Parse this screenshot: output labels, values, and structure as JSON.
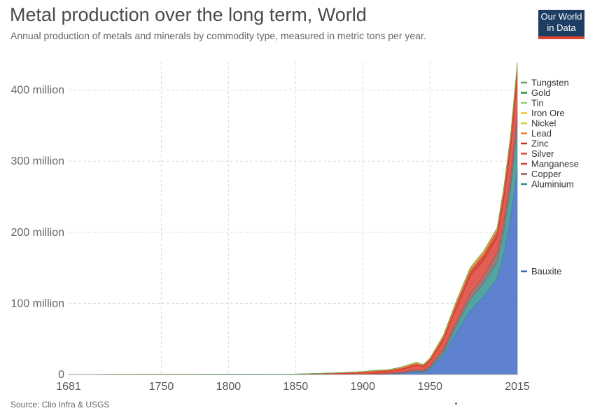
{
  "header": {
    "title": "Metal production over the long term, World",
    "subtitle": "Annual production of metals and minerals by commodity type, measured in metric tons per year.",
    "logo_line1": "Our World",
    "logo_line2": "in Data"
  },
  "footer": {
    "source": "Source: Clio Infra & USGS"
  },
  "colors": {
    "Bauxite": "#3a66c4",
    "Aluminium": "#2e8f8c",
    "Copper": "#8a5a5a",
    "Manganese": "#d93a2f",
    "Silver": "#e8453a",
    "Zinc": "#c8311f",
    "Lead": "#e8812a",
    "Nickel": "#d4c64a",
    "Iron Ore": "#f2c12e",
    "Tin": "#8fcf7a",
    "Gold": "#2f8f3a",
    "Tungsten": "#5aa55a"
  },
  "chart_data": {
    "type": "area",
    "title": "Metal production over the long term, World",
    "xlim": [
      1681,
      2015
    ],
    "ylim": [
      0,
      440000000
    ],
    "x_ticks": [
      "1681",
      "1750",
      "1800",
      "1850",
      "1900",
      "1950",
      "2015"
    ],
    "y_ticks": [
      "0",
      "100 million",
      "200 million",
      "300 million",
      "400 million"
    ],
    "x": [
      1681,
      1750,
      1800,
      1850,
      1880,
      1900,
      1910,
      1920,
      1930,
      1940,
      1945,
      1950,
      1960,
      1970,
      1980,
      1990,
      2000,
      2005,
      2010,
      2015
    ],
    "series": [
      {
        "name": "Bauxite",
        "values": [
          0,
          0,
          0,
          0,
          0,
          0.1,
          0.5,
          1,
          2,
          4,
          3,
          8,
          27,
          60,
          90,
          110,
          135,
          170,
          220,
          290
        ]
      },
      {
        "name": "Aluminium",
        "values": [
          0,
          0,
          0,
          0,
          0,
          0,
          0.01,
          0.1,
          0.3,
          1,
          1,
          1.5,
          4.5,
          10,
          16,
          19,
          24,
          32,
          41,
          58
        ]
      },
      {
        "name": "Copper",
        "values": [
          0,
          0,
          0,
          0,
          0.15,
          0.5,
          0.9,
          1,
          1.6,
          2.3,
          2,
          2.5,
          4.2,
          6.3,
          7.7,
          9,
          13,
          15,
          16,
          18.5
        ]
      },
      {
        "name": "Manganese",
        "values": [
          0,
          0,
          0,
          0,
          0.5,
          1,
          1.5,
          2,
          3,
          5,
          4,
          6,
          12,
          18,
          25,
          23,
          20,
          30,
          40,
          50
        ]
      },
      {
        "name": "Silver",
        "values": [
          0.1,
          0.3,
          0.4,
          0.5,
          0.8,
          1,
          1,
          1,
          1,
          1,
          1,
          1,
          1,
          1,
          1,
          1,
          1,
          1,
          1,
          1
        ]
      },
      {
        "name": "Zinc",
        "values": [
          0,
          0,
          0,
          0.1,
          0.4,
          0.5,
          0.8,
          0.7,
          1.5,
          1.8,
          1.5,
          2,
          3.5,
          5.5,
          6.2,
          7.2,
          8.7,
          10,
          12,
          13
        ]
      },
      {
        "name": "Lead",
        "values": [
          0.1,
          0.1,
          0.2,
          0.1,
          0.4,
          0.9,
          1.1,
          0.9,
          1.6,
          1.7,
          1.2,
          1.6,
          2.5,
          3.4,
          3.5,
          3.4,
          3.1,
          3.4,
          4.1,
          4.7
        ]
      },
      {
        "name": "Nickel",
        "values": [
          0,
          0,
          0,
          0,
          0,
          0.01,
          0.02,
          0.03,
          0.1,
          0.15,
          0.13,
          0.15,
          0.3,
          0.7,
          0.8,
          1,
          1.3,
          1.5,
          1.6,
          2.3
        ]
      },
      {
        "name": "Iron Ore",
        "values": [
          0,
          0,
          0,
          0,
          0,
          0,
          0,
          0,
          0,
          0,
          0,
          0,
          0,
          0,
          0,
          0,
          0,
          0,
          0,
          0
        ]
      },
      {
        "name": "Tin",
        "values": [
          0,
          0,
          0,
          0,
          0.05,
          0.1,
          0.1,
          0.1,
          0.2,
          0.2,
          0.1,
          0.2,
          0.2,
          0.2,
          0.25,
          0.22,
          0.27,
          0.3,
          0.3,
          0.3
        ]
      },
      {
        "name": "Gold",
        "values": [
          0,
          0,
          0,
          0,
          0,
          0,
          0,
          0,
          0,
          0,
          0,
          0,
          0,
          0,
          0,
          0,
          0,
          0,
          0,
          0
        ]
      },
      {
        "name": "Tungsten",
        "values": [
          0,
          0,
          0,
          0,
          0,
          0,
          0,
          0,
          0,
          0,
          0,
          0,
          0,
          0,
          0,
          0,
          0,
          0,
          0,
          0
        ]
      }
    ],
    "value_unit": "million metric tons",
    "legend": [
      "Tungsten",
      "Gold",
      "Tin",
      "Iron Ore",
      "Nickel",
      "Lead",
      "Zinc",
      "Silver",
      "Manganese",
      "Copper",
      "Aluminium",
      "Bauxite"
    ],
    "grid": true,
    "legend_position": "right"
  }
}
